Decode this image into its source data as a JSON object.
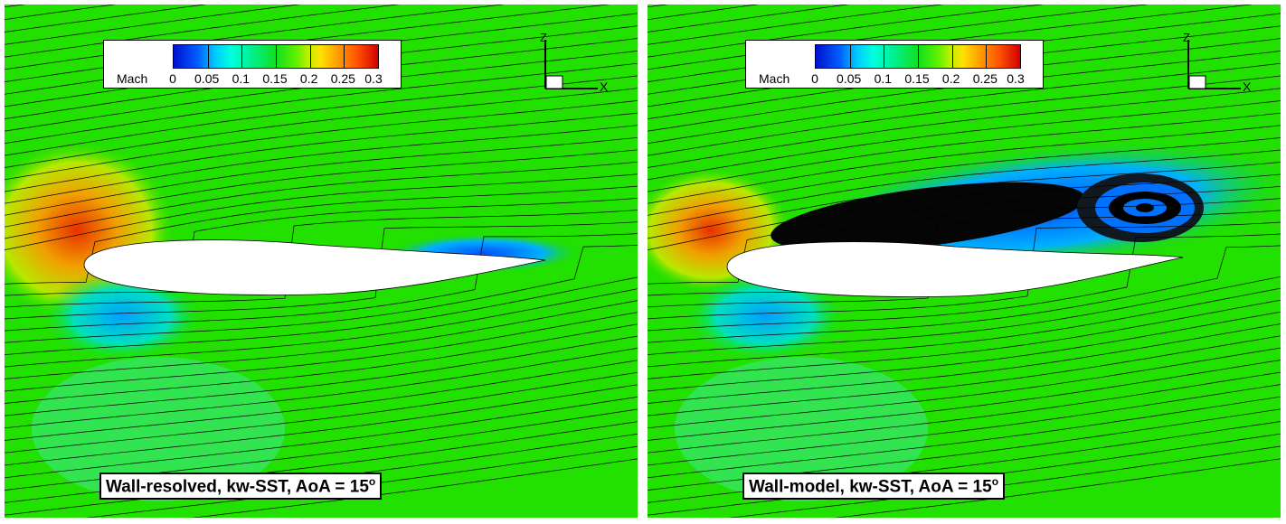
{
  "panels": [
    {
      "caption": "Wall-resolved, kw-SST, AoA = 15",
      "caption_sup": "o",
      "separated": false
    },
    {
      "caption": "Wall-model, kw-SST, AoA = 15",
      "caption_sup": "o",
      "separated": true
    }
  ],
  "legend": {
    "title": "Mach",
    "ticks": [
      "0",
      "0.05",
      "0.1",
      "0.15",
      "0.2",
      "0.25",
      "0.3"
    ]
  },
  "axes": {
    "z": "Z",
    "x": "X"
  },
  "colors": {
    "freestream": "#22e000",
    "low": "#0050ff",
    "high": "#ff2000",
    "streamline": "#000000"
  }
}
